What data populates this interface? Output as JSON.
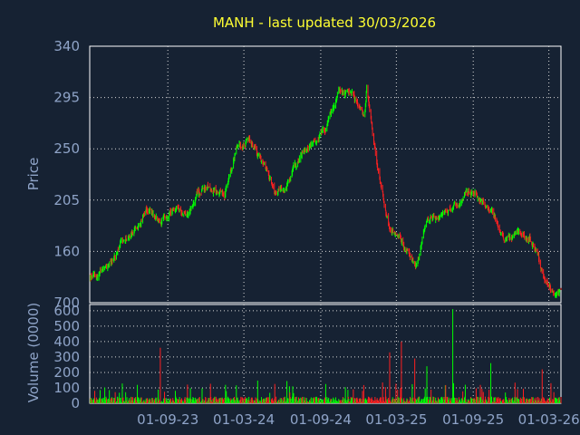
{
  "theme": {
    "background": "#162233",
    "plot_border": "#ffffff",
    "grid": "#d8d8d8",
    "title_color": "#ffff33",
    "label_color": "#8fa4c8",
    "up_color": "#00ff00",
    "down_color": "#ff2020"
  },
  "chart_data": [
    {
      "type": "line",
      "subtype": "candlestick",
      "title": "MANH - last updated 30/03/2026",
      "xlabel": "",
      "ylabel": "Price",
      "ylim": [
        115,
        340
      ],
      "yticks": [
        340,
        295,
        250,
        205,
        160
      ],
      "yticks_labels": [
        "340",
        "295",
        "250",
        "205",
        "160"
      ],
      "bottom_tick_label": "700",
      "grid": true,
      "legend": "none",
      "series": [
        {
          "values": [
            {
              "x": "2023-03",
              "y": 137
            },
            {
              "x": "2023-04",
              "y": 148
            },
            {
              "x": "2023-05",
              "y": 167
            },
            {
              "x": "2023-06",
              "y": 178
            },
            {
              "x": "2023-07",
              "y": 195
            },
            {
              "x": "2023-08",
              "y": 188
            },
            {
              "x": "2023-09",
              "y": 197
            },
            {
              "x": "2023-10",
              "y": 190
            },
            {
              "x": "2023-11",
              "y": 212
            },
            {
              "x": "2023-12",
              "y": 217
            },
            {
              "x": "2024-01",
              "y": 205
            },
            {
              "x": "2024-02",
              "y": 255
            },
            {
              "x": "2024-03",
              "y": 258
            },
            {
              "x": "2024-04",
              "y": 240
            },
            {
              "x": "2024-05",
              "y": 210
            },
            {
              "x": "2024-06",
              "y": 218
            },
            {
              "x": "2024-07",
              "y": 245
            },
            {
              "x": "2024-08",
              "y": 255
            },
            {
              "x": "2024-09",
              "y": 265
            },
            {
              "x": "2024-10",
              "y": 298
            },
            {
              "x": "2024-11",
              "y": 295
            },
            {
              "x": "2024-12",
              "y": 275
            },
            {
              "x": "2024-12-20",
              "y": 302
            },
            {
              "x": "2025-01",
              "y": 232
            },
            {
              "x": "2025-02",
              "y": 175
            },
            {
              "x": "2025-03",
              "y": 168
            },
            {
              "x": "2025-04",
              "y": 145
            },
            {
              "x": "2025-05",
              "y": 188
            },
            {
              "x": "2025-06",
              "y": 190
            },
            {
              "x": "2025-07",
              "y": 198
            },
            {
              "x": "2025-08",
              "y": 212
            },
            {
              "x": "2025-09",
              "y": 210
            },
            {
              "x": "2025-10",
              "y": 195
            },
            {
              "x": "2025-11",
              "y": 170
            },
            {
              "x": "2025-12",
              "y": 178
            },
            {
              "x": "2026-01",
              "y": 172
            },
            {
              "x": "2026-02",
              "y": 140
            },
            {
              "x": "2026-03",
              "y": 125
            }
          ]
        }
      ]
    },
    {
      "type": "bar",
      "xlabel": "",
      "ylabel": "Volume (0000)",
      "ylim": [
        0,
        640
      ],
      "yticks": [
        600,
        500,
        400,
        300,
        200,
        100,
        0
      ],
      "yticks_labels": [
        "600",
        "500",
        "400",
        "300",
        "200",
        "100",
        "0"
      ],
      "grid": true,
      "legend": "none",
      "x_tick_labels": [
        "01-09-23",
        "01-03-24",
        "01-09-24",
        "01-03-25",
        "01-09-25",
        "01-03-26"
      ],
      "notable_values": [
        {
          "x": "2023-08",
          "y": 360
        },
        {
          "x": "2025-02",
          "y": 330
        },
        {
          "x": "2025-03",
          "y": 400
        },
        {
          "x": "2025-04",
          "y": 290
        },
        {
          "x": "2025-05",
          "y": 240
        },
        {
          "x": "2025-07",
          "y": 610
        },
        {
          "x": "2025-08",
          "y": 120
        },
        {
          "x": "2025-10",
          "y": 260
        },
        {
          "x": "2026-02",
          "y": 220
        }
      ]
    }
  ]
}
